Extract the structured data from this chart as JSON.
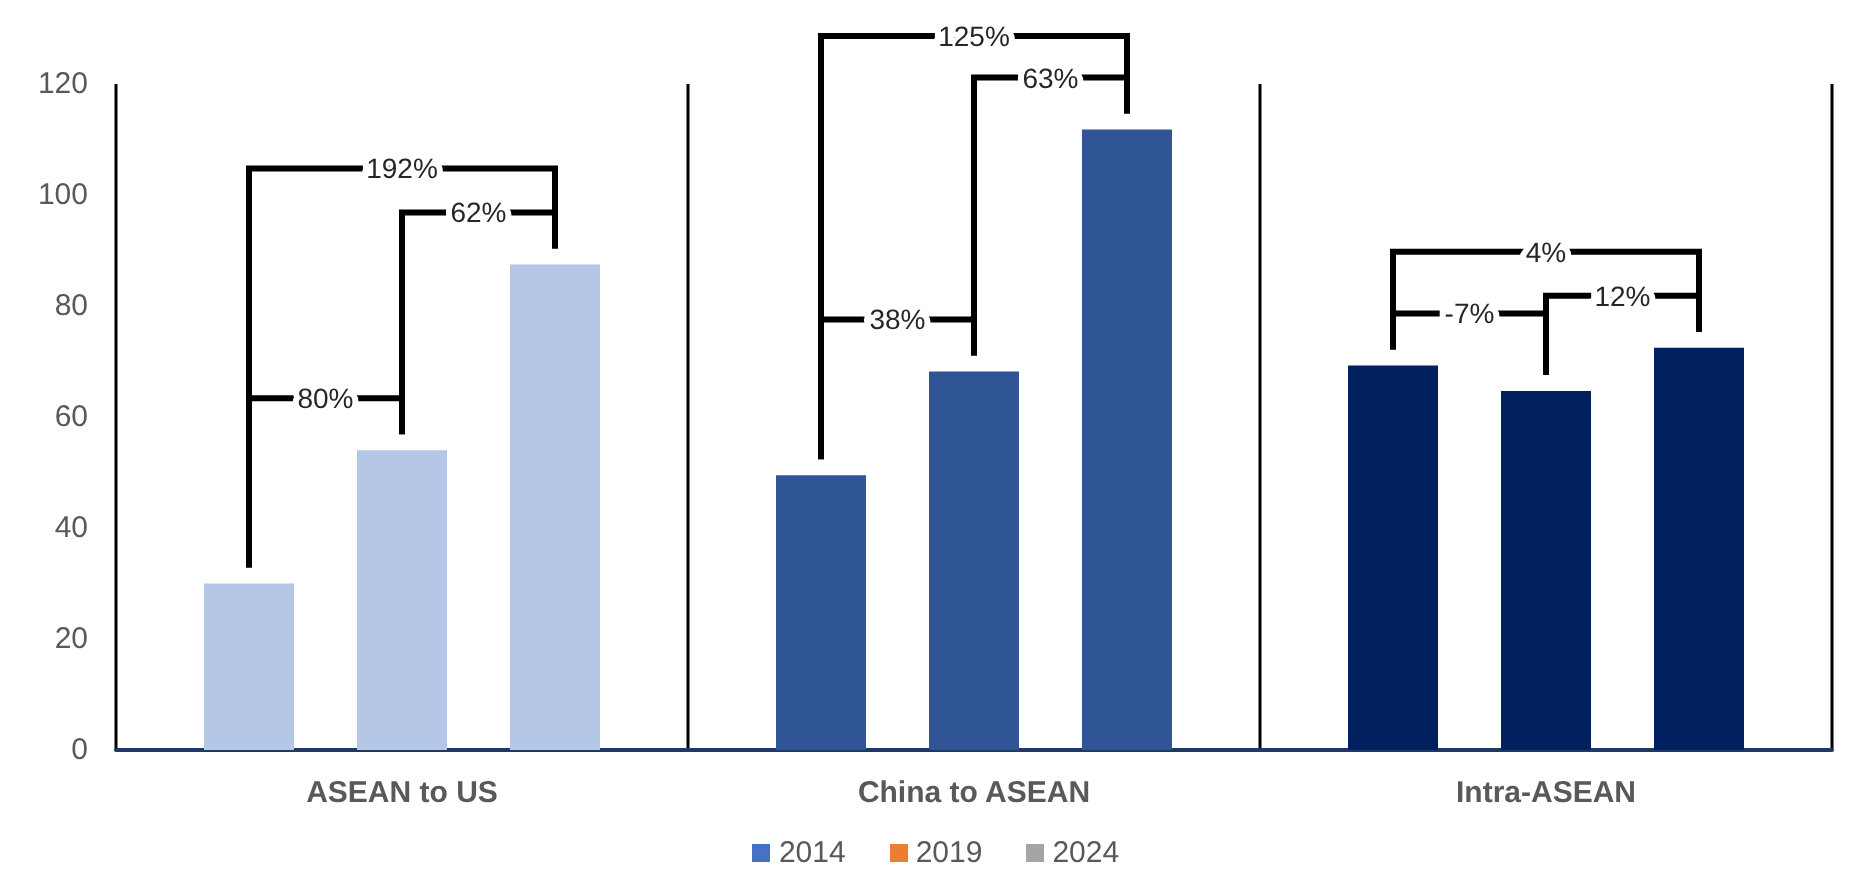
{
  "chart_data": {
    "type": "bar",
    "categories": [
      "ASEAN to US",
      "China to ASEAN",
      "Intra-ASEAN"
    ],
    "series": [
      {
        "name": "2014",
        "color": "#4472c4",
        "colors": [
          "#b4c7e7",
          "#2f5597",
          "#002060"
        ],
        "values": [
          30,
          49.5,
          69.3
        ]
      },
      {
        "name": "2019",
        "color": "#ed7d31",
        "colors": [
          "#b4c7e7",
          "#2f5597",
          "#002060"
        ],
        "values": [
          54,
          68.2,
          64.7
        ]
      },
      {
        "name": "2024",
        "color": "#a5a5a5",
        "colors": [
          "#b4c7e7",
          "#2f5597",
          "#002060"
        ],
        "values": [
          87.5,
          111.8,
          72.5
        ]
      }
    ],
    "ylim": [
      0,
      120
    ],
    "yticks": [
      0,
      20,
      40,
      60,
      80,
      100,
      120
    ],
    "grid": "x",
    "legend": "bottom",
    "annotations": [
      "80%",
      "62%",
      "192%",
      "38%",
      "63%",
      "125%",
      "-7%",
      "12%",
      "4%"
    ]
  }
}
